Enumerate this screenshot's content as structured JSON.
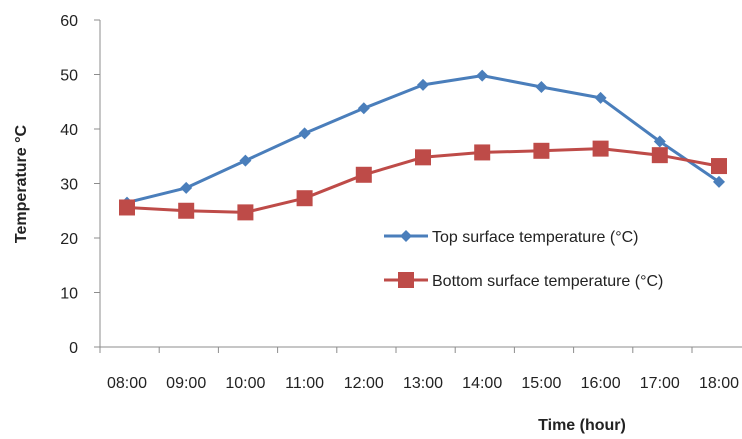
{
  "chart_data": {
    "type": "line",
    "title": "",
    "xlabel": "Time (hour)",
    "ylabel": "Temperature °C",
    "ylim": [
      0,
      60
    ],
    "yticks": [
      0,
      10,
      20,
      30,
      40,
      50,
      60
    ],
    "grid": false,
    "legend_position": "right",
    "categories": [
      "08:00",
      "09:00",
      "10:00",
      "11:00",
      "12:00",
      "13:00",
      "14:00",
      "15:00",
      "16:00",
      "17:00",
      "18:00"
    ],
    "series": [
      {
        "name": "Top surface temperature (°C)",
        "color": "#4a7ebb",
        "marker": "diamond",
        "values": [
          26.5,
          29.2,
          34.2,
          39.2,
          43.8,
          48.1,
          49.8,
          47.7,
          45.7,
          37.7,
          30.3
        ]
      },
      {
        "name": "Bottom surface temperature (°C)",
        "color": "#be4b48",
        "marker": "square",
        "values": [
          25.6,
          25.0,
          24.7,
          27.3,
          31.6,
          34.8,
          35.7,
          36.0,
          36.4,
          35.2,
          33.2
        ]
      }
    ]
  }
}
